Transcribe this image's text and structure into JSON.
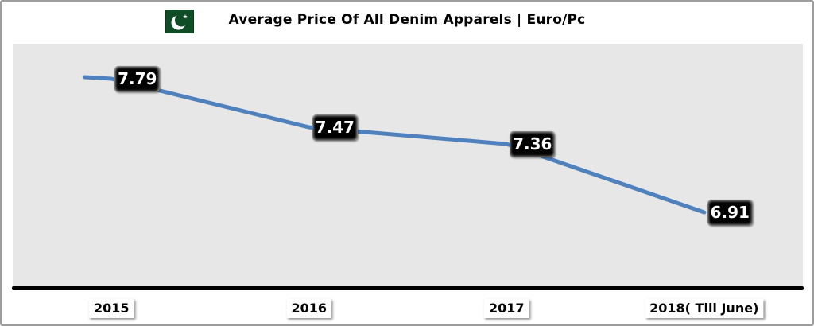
{
  "header": {
    "title": "Average Price Of All Denim Apparels | Euro/Pc",
    "flag_icon": "pakistan-flag"
  },
  "chart_data": {
    "type": "line",
    "title": "Average Price Of All Denim Apparels | Euro/Pc",
    "categories": [
      "2015",
      "2016",
      "2017",
      "2018( Till June)"
    ],
    "values": [
      7.79,
      7.47,
      7.36,
      6.91
    ],
    "point_labels": [
      "7.79",
      "7.47",
      "7.36",
      "6.91"
    ],
    "xlabel": "",
    "ylabel": "",
    "unit": "Euro/Pc",
    "ylim": [
      6.4,
      8.0
    ],
    "y_axis_visible": false,
    "grid": false,
    "legend_position": "none",
    "marker": "none",
    "label_style": "black-beveled-box"
  },
  "colors": {
    "line": "#4f81bd",
    "plot_background": "#e7e7e7",
    "axis": "#000000",
    "label_box_bg": "#000000",
    "label_box_text": "#ffffff",
    "year_box_bg": "#ffffff",
    "flag_green": "#0e4d25",
    "frame_border": "#9c9c9c"
  }
}
